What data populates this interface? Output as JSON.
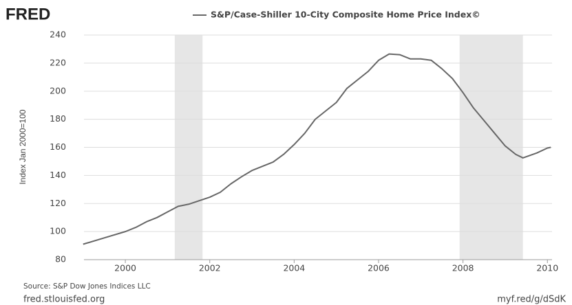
{
  "logo": "FRED",
  "chart_data": {
    "type": "line",
    "y_label": "Index Jan 2000=100",
    "x": [
      1999.0,
      1999.5,
      2000.0,
      2000.25,
      2000.5,
      2000.75,
      2001.0,
      2001.25,
      2001.5,
      2001.75,
      2002.0,
      2002.25,
      2002.5,
      2002.75,
      2003.0,
      2003.25,
      2003.5,
      2003.75,
      2004.0,
      2004.25,
      2004.5,
      2004.75,
      2005.0,
      2005.25,
      2005.5,
      2005.75,
      2006.0,
      2006.25,
      2006.5,
      2006.75,
      2007.0,
      2007.25,
      2007.5,
      2007.75,
      2008.0,
      2008.25,
      2008.5,
      2008.75,
      2009.0,
      2009.25,
      2009.42,
      2009.75,
      2010.0,
      2010.08
    ],
    "series": [
      {
        "name": "S&P/Case-Shiller 10-City Composite Home Price Index©",
        "color": "#666666",
        "values": [
          91,
          95.5,
          100,
          103,
          107,
          110,
          114,
          118,
          119.5,
          122,
          124.5,
          128,
          134,
          139,
          143.5,
          146.5,
          149.5,
          155,
          162,
          170,
          180,
          186,
          192,
          202,
          208,
          214,
          222,
          226.5,
          226,
          223,
          223,
          222,
          216,
          209,
          199,
          188,
          179,
          170,
          161,
          155,
          152.5,
          156,
          159.5,
          160
        ]
      }
    ],
    "recessions": [
      [
        2001.17,
        2001.83
      ],
      [
        2007.92,
        2009.42
      ]
    ],
    "recession_color": "#e6e6e6",
    "xlim": [
      1999.02,
      2010.11
    ],
    "xticks": [
      2000,
      2002,
      2004,
      2006,
      2008,
      2010
    ],
    "ylim": [
      80,
      240
    ],
    "yticks": [
      80,
      100,
      120,
      140,
      160,
      180,
      200,
      220,
      240
    ],
    "grid": true
  },
  "source": "Source: S&P Dow Jones Indices LLC",
  "footer_left": "fred.stlouisfed.org",
  "footer_right": "myf.red/g/dSdK"
}
